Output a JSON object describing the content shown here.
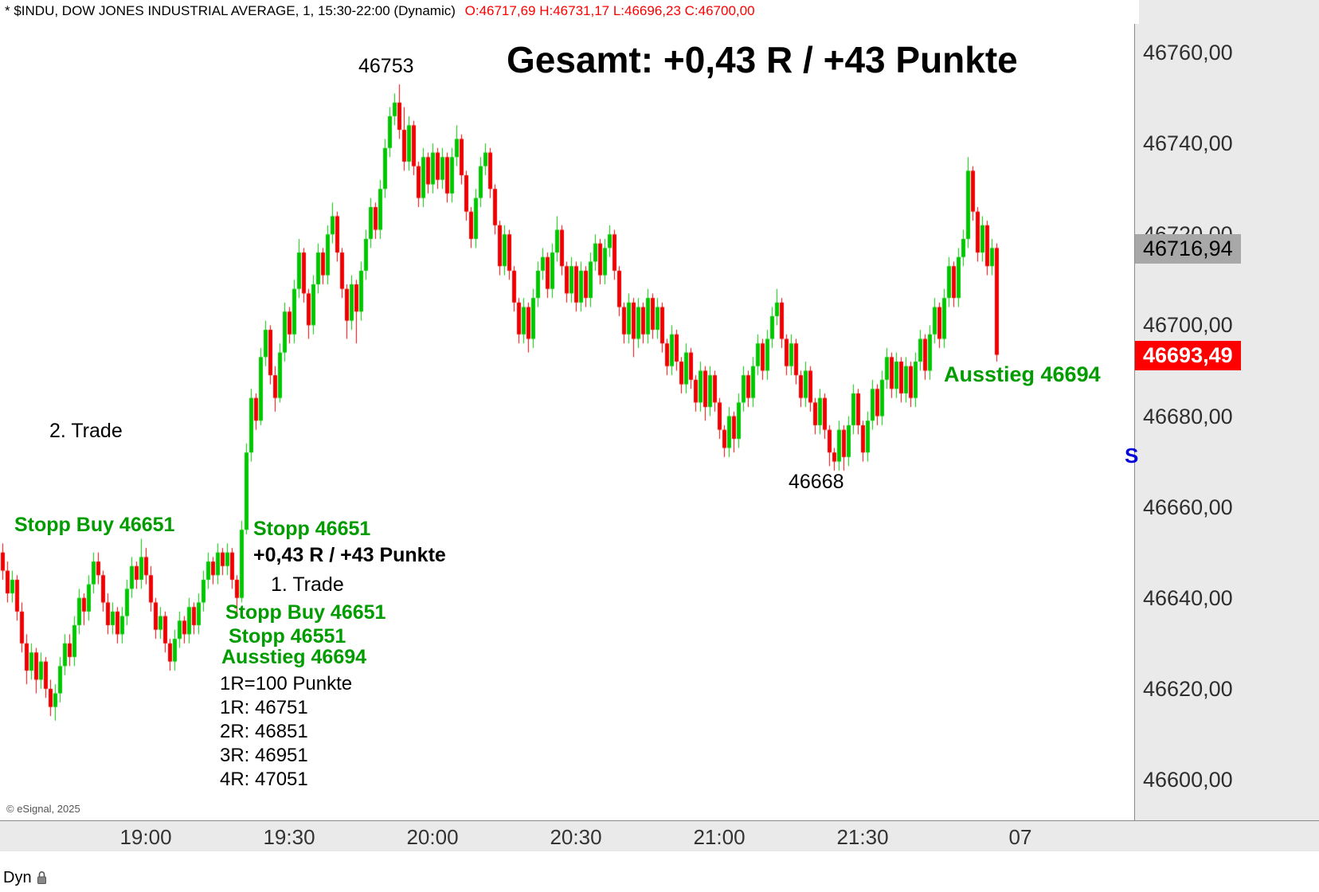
{
  "title_bar": {
    "symbol_text": "* $INDU, DOW JONES INDUSTRIAL AVERAGE, 1, 15:30-22:00 (Dynamic)",
    "ohlc_text": "O:46717,69 H:46731,17 L:46696,23 C:46700,00"
  },
  "annotations": {
    "headline": "Gesamt: +0,43 R / +43 Punkte",
    "peak_label": "46753",
    "trough_label": "46668",
    "trade2_label": "2. Trade",
    "stopp_buy_left": "Stopp Buy 46651",
    "stopp_46651": "Stopp 46651",
    "result_line": "+0,43 R / +43 Punkte",
    "trade1_label": "1. Trade",
    "stopp_buy_1": "Stopp Buy 46651",
    "stopp_46551": "Stopp 46551",
    "ausstieg_1": "Ausstieg 46694",
    "r_lines": [
      "1R=100 Punkte",
      "1R: 46751",
      "2R: 46851",
      "3R: 46951",
      "4R: 47051"
    ],
    "ausstieg_right": "Ausstieg 46694",
    "s_partial": "S"
  },
  "price_axis": {
    "labels": [
      {
        "text": "46760,00",
        "value": 46760
      },
      {
        "text": "46740,00",
        "value": 46740
      },
      {
        "text": "46720,00",
        "value": 46720
      },
      {
        "text": "46700,00",
        "value": 46700
      },
      {
        "text": "46680,00",
        "value": 46680
      },
      {
        "text": "46660,00",
        "value": 46660
      },
      {
        "text": "46640,00",
        "value": 46640
      },
      {
        "text": "46620,00",
        "value": 46620
      },
      {
        "text": "46600,00",
        "value": 46600
      }
    ],
    "markers": [
      {
        "text": "46716,94",
        "value": 46716.94,
        "style": "gray"
      },
      {
        "text": "46693,49",
        "value": 46693.49,
        "style": "red"
      }
    ]
  },
  "time_axis": {
    "labels": [
      {
        "text": "19:00",
        "minute": 30
      },
      {
        "text": "19:30",
        "minute": 60
      },
      {
        "text": "20:00",
        "minute": 90
      },
      {
        "text": "20:30",
        "minute": 120
      },
      {
        "text": "21:00",
        "minute": 150
      },
      {
        "text": "21:30",
        "minute": 180
      },
      {
        "text": "07",
        "minute": 213
      }
    ],
    "dyn_label": "Dyn"
  },
  "footer": {
    "copyright": "© eSignal, 2025"
  },
  "colors": {
    "up": "#00C800",
    "down": "#F00000",
    "annotation_green": "#009C00",
    "annotation_blue": "#0000D8",
    "marker_red_bg": "#FF0000",
    "marker_gray_bg": "#A8A8A8",
    "ohlc_red": "#FF0000",
    "axis_bg": "#EAEAEA"
  },
  "chart_data": {
    "type": "candlestick",
    "title": "Gesamt: +0,43 R / +43 Punkte",
    "symbol": "$INDU",
    "description": "DOW JONES INDUSTRIAL AVERAGE",
    "interval_minutes": 1,
    "session": "15:30-22:00 (Dynamic)",
    "ohlc_readout": {
      "open": "46717,69",
      "high": "46731,17",
      "low": "46696,23",
      "close": "46700,00"
    },
    "x_start_time": "18:30",
    "x_tick_labels": [
      "19:00",
      "19:30",
      "20:00",
      "20:30",
      "21:00",
      "21:30",
      "07"
    ],
    "ylim": [
      46600,
      46760
    ],
    "y_ticks": [
      46760,
      46740,
      46720,
      46700,
      46680,
      46660,
      46640,
      46620,
      46600
    ],
    "grid": false,
    "session_high": 46753,
    "session_low": 46668,
    "last_price": 46693.49,
    "reference_price": 46716.94,
    "candles": [
      [
        46650,
        46652,
        46644,
        46646
      ],
      [
        46646,
        46648,
        46639,
        46641
      ],
      [
        46641,
        46646,
        46639,
        46644
      ],
      [
        46644,
        46645,
        46635,
        46637
      ],
      [
        46637,
        46639,
        46628,
        46630
      ],
      [
        46630,
        46632,
        46621,
        46624
      ],
      [
        46624,
        46630,
        46622,
        46628
      ],
      [
        46628,
        46629,
        46619,
        46622
      ],
      [
        46622,
        46628,
        46620,
        46626
      ],
      [
        46626,
        46627,
        46618,
        46620
      ],
      [
        46620,
        46622,
        46614,
        46616
      ],
      [
        46616,
        46621,
        46613,
        46619
      ],
      [
        46619,
        46627,
        46617,
        46625
      ],
      [
        46625,
        46632,
        46623,
        46630
      ],
      [
        46630,
        46632,
        46625,
        46627
      ],
      [
        46627,
        46636,
        46625,
        46634
      ],
      [
        46634,
        46642,
        46632,
        46640
      ],
      [
        46640,
        46641,
        46634,
        46637
      ],
      [
        46637,
        46645,
        46635,
        46643
      ],
      [
        46643,
        46650,
        46641,
        46648
      ],
      [
        46648,
        46650,
        46643,
        46645
      ],
      [
        46645,
        46646,
        46637,
        46639
      ],
      [
        46639,
        46641,
        46632,
        46634
      ],
      [
        46634,
        46639,
        46632,
        46637
      ],
      [
        46637,
        46638,
        46630,
        46632
      ],
      [
        46632,
        46638,
        46630,
        46636
      ],
      [
        46636,
        46644,
        46634,
        46642
      ],
      [
        46642,
        46649,
        46640,
        46647
      ],
      [
        46647,
        46648,
        46642,
        46644
      ],
      [
        46644,
        46653,
        46642,
        46649
      ],
      [
        46649,
        46651,
        46643,
        46645
      ],
      [
        46645,
        46647,
        46637,
        46639
      ],
      [
        46639,
        46640,
        46631,
        46633
      ],
      [
        46633,
        46638,
        46631,
        46636
      ],
      [
        46636,
        46637,
        46628,
        46630
      ],
      [
        46630,
        46631,
        46624,
        46626
      ],
      [
        46626,
        46633,
        46624,
        46631
      ],
      [
        46631,
        46637,
        46629,
        46635
      ],
      [
        46635,
        46636,
        46630,
        46632
      ],
      [
        46632,
        46640,
        46630,
        46638
      ],
      [
        46638,
        46639,
        46632,
        46634
      ],
      [
        46634,
        46641,
        46632,
        46639
      ],
      [
        46639,
        46646,
        46637,
        46644
      ],
      [
        46644,
        46650,
        46642,
        46648
      ],
      [
        46648,
        46649,
        46643,
        46645
      ],
      [
        46645,
        46652,
        46643,
        46650
      ],
      [
        46650,
        46651,
        46645,
        46647
      ],
      [
        46647,
        46652,
        46645,
        46650
      ],
      [
        46650,
        46651,
        46642,
        46644
      ],
      [
        46644,
        46645,
        46636,
        46640
      ],
      [
        46640,
        46657,
        46639,
        46655
      ],
      [
        46655,
        46674,
        46654,
        46672
      ],
      [
        46672,
        46686,
        46670,
        46684
      ],
      [
        46684,
        46685,
        46677,
        46679
      ],
      [
        46679,
        46695,
        46678,
        46693
      ],
      [
        46693,
        46701,
        46691,
        46699
      ],
      [
        46699,
        46700,
        46687,
        46689
      ],
      [
        46689,
        46691,
        46681,
        46684
      ],
      [
        46684,
        46696,
        46683,
        46694
      ],
      [
        46694,
        46705,
        46692,
        46703
      ],
      [
        46703,
        46704,
        46696,
        46698
      ],
      [
        46698,
        46710,
        46696,
        46708
      ],
      [
        46708,
        46719,
        46706,
        46716
      ],
      [
        46716,
        46717,
        46705,
        46707
      ],
      [
        46707,
        46708,
        46697,
        46700
      ],
      [
        46700,
        46711,
        46698,
        46709
      ],
      [
        46709,
        46718,
        46707,
        46716
      ],
      [
        46716,
        46717,
        46709,
        46711
      ],
      [
        46711,
        46722,
        46709,
        46720
      ],
      [
        46720,
        46727,
        46718,
        46724
      ],
      [
        46724,
        46725,
        46714,
        46716
      ],
      [
        46716,
        46717,
        46706,
        46708
      ],
      [
        46708,
        46709,
        46697,
        46701
      ],
      [
        46701,
        46711,
        46699,
        46709
      ],
      [
        46709,
        46710,
        46696,
        46703
      ],
      [
        46703,
        46714,
        46701,
        46712
      ],
      [
        46712,
        46721,
        46710,
        46719
      ],
      [
        46719,
        46728,
        46717,
        46726
      ],
      [
        46726,
        46727,
        46719,
        46721
      ],
      [
        46721,
        46732,
        46719,
        46730
      ],
      [
        46730,
        46741,
        46728,
        46739
      ],
      [
        46739,
        46748,
        46737,
        46746
      ],
      [
        46746,
        46751,
        46744,
        46749
      ],
      [
        46749,
        46753,
        46741,
        46743
      ],
      [
        46743,
        46748,
        46734,
        46736
      ],
      [
        46736,
        46746,
        46734,
        46744
      ],
      [
        46744,
        46745,
        46733,
        46735
      ],
      [
        46735,
        46736,
        46726,
        46728
      ],
      [
        46728,
        46739,
        46726,
        46737
      ],
      [
        46737,
        46738,
        46729,
        46731
      ],
      [
        46731,
        46740,
        46729,
        46738
      ],
      [
        46738,
        46739,
        46730,
        46732
      ],
      [
        46732,
        46739,
        46730,
        46737
      ],
      [
        46737,
        46738,
        46727,
        46729
      ],
      [
        46729,
        46739,
        46727,
        46737
      ],
      [
        46737,
        46744,
        46735,
        46741
      ],
      [
        46741,
        46742,
        46731,
        46733
      ],
      [
        46733,
        46734,
        46723,
        46725
      ],
      [
        46725,
        46726,
        46717,
        46719
      ],
      [
        46719,
        46730,
        46717,
        46728
      ],
      [
        46728,
        46737,
        46726,
        46735
      ],
      [
        46735,
        46740,
        46733,
        46738
      ],
      [
        46738,
        46739,
        46728,
        46730
      ],
      [
        46730,
        46731,
        46720,
        46722
      ],
      [
        46722,
        46723,
        46711,
        46713
      ],
      [
        46713,
        46722,
        46711,
        46720
      ],
      [
        46720,
        46721,
        46710,
        46712
      ],
      [
        46712,
        46713,
        46703,
        46705
      ],
      [
        46705,
        46706,
        46696,
        46698
      ],
      [
        46698,
        46706,
        46696,
        46704
      ],
      [
        46704,
        46705,
        46694,
        46697
      ],
      [
        46697,
        46708,
        46695,
        46706
      ],
      [
        46706,
        46714,
        46704,
        46712
      ],
      [
        46712,
        46717,
        46710,
        46715
      ],
      [
        46715,
        46716,
        46706,
        46708
      ],
      [
        46708,
        46718,
        46706,
        46716
      ],
      [
        46716,
        46724,
        46714,
        46721
      ],
      [
        46721,
        46722,
        46711,
        46713
      ],
      [
        46713,
        46714,
        46705,
        46707
      ],
      [
        46707,
        46715,
        46705,
        46713
      ],
      [
        46713,
        46714,
        46703,
        46705
      ],
      [
        46705,
        46714,
        46703,
        46712
      ],
      [
        46712,
        46713,
        46704,
        46706
      ],
      [
        46706,
        46716,
        46704,
        46714
      ],
      [
        46714,
        46720,
        46712,
        46718
      ],
      [
        46718,
        46719,
        46709,
        46711
      ],
      [
        46711,
        46719,
        46709,
        46717
      ],
      [
        46717,
        46722,
        46715,
        46720
      ],
      [
        46720,
        46721,
        46710,
        46712
      ],
      [
        46712,
        46713,
        46702,
        46704
      ],
      [
        46704,
        46705,
        46696,
        46698
      ],
      [
        46698,
        46707,
        46696,
        46705
      ],
      [
        46705,
        46706,
        46693,
        46697
      ],
      [
        46697,
        46706,
        46695,
        46704
      ],
      [
        46704,
        46705,
        46696,
        46698
      ],
      [
        46698,
        46708,
        46696,
        46706
      ],
      [
        46706,
        46707,
        46697,
        46699
      ],
      [
        46699,
        46706,
        46697,
        46704
      ],
      [
        46704,
        46705,
        46694,
        46696
      ],
      [
        46696,
        46697,
        46689,
        46691
      ],
      [
        46691,
        46700,
        46689,
        46698
      ],
      [
        46698,
        46699,
        46690,
        46692
      ],
      [
        46692,
        46693,
        46685,
        46687
      ],
      [
        46687,
        46696,
        46685,
        46694
      ],
      [
        46694,
        46695,
        46686,
        46688
      ],
      [
        46688,
        46689,
        46681,
        46683
      ],
      [
        46683,
        46692,
        46681,
        46690
      ],
      [
        46690,
        46691,
        46679,
        46682
      ],
      [
        46682,
        46691,
        46680,
        46689
      ],
      [
        46689,
        46690,
        46681,
        46683
      ],
      [
        46683,
        46684,
        46675,
        46677
      ],
      [
        46677,
        46678,
        46671,
        46673
      ],
      [
        46673,
        46682,
        46671,
        46680
      ],
      [
        46680,
        46681,
        46672,
        46675
      ],
      [
        46675,
        46685,
        46673,
        46683
      ],
      [
        46683,
        46691,
        46681,
        46689
      ],
      [
        46689,
        46690,
        46682,
        46684
      ],
      [
        46684,
        46693,
        46682,
        46691
      ],
      [
        46691,
        46698,
        46689,
        46696
      ],
      [
        46696,
        46697,
        46688,
        46690
      ],
      [
        46690,
        46699,
        46688,
        46697
      ],
      [
        46697,
        46704,
        46695,
        46702
      ],
      [
        46702,
        46708,
        46700,
        46705
      ],
      [
        46705,
        46706,
        46695,
        46697
      ],
      [
        46697,
        46698,
        46689,
        46691
      ],
      [
        46691,
        46698,
        46689,
        46696
      ],
      [
        46696,
        46697,
        46687,
        46689
      ],
      [
        46689,
        46690,
        46682,
        46684
      ],
      [
        46684,
        46692,
        46682,
        46690
      ],
      [
        46690,
        46691,
        46681,
        46683
      ],
      [
        46683,
        46684,
        46676,
        46678
      ],
      [
        46678,
        46686,
        46676,
        46684
      ],
      [
        46684,
        46685,
        46675,
        46677
      ],
      [
        46677,
        46678,
        46669,
        46672
      ],
      [
        46672,
        46673,
        46668,
        46670
      ],
      [
        46670,
        46679,
        46668,
        46677
      ],
      [
        46677,
        46678,
        46668,
        46671
      ],
      [
        46671,
        46680,
        46669,
        46678
      ],
      [
        46678,
        46687,
        46676,
        46685
      ],
      [
        46685,
        46686,
        46676,
        46678
      ],
      [
        46678,
        46679,
        46670,
        46672
      ],
      [
        46672,
        46681,
        46670,
        46679
      ],
      [
        46679,
        46688,
        46677,
        46686
      ],
      [
        46686,
        46687,
        46678,
        46680
      ],
      [
        46680,
        46690,
        46678,
        46688
      ],
      [
        46688,
        46695,
        46686,
        46693
      ],
      [
        46693,
        46694,
        46684,
        46686
      ],
      [
        46686,
        46694,
        46684,
        46692
      ],
      [
        46692,
        46693,
        46683,
        46685
      ],
      [
        46685,
        46693,
        46683,
        46691
      ],
      [
        46691,
        46692,
        46682,
        46684
      ],
      [
        46684,
        46694,
        46682,
        46692
      ],
      [
        46692,
        46699,
        46690,
        46697
      ],
      [
        46697,
        46698,
        46688,
        46690
      ],
      [
        46690,
        46700,
        46688,
        46698
      ],
      [
        46698,
        46706,
        46696,
        46704
      ],
      [
        46704,
        46705,
        46695,
        46697
      ],
      [
        46697,
        46708,
        46695,
        46706
      ],
      [
        46706,
        46715,
        46704,
        46713
      ],
      [
        46713,
        46714,
        46704,
        46706
      ],
      [
        46706,
        46717,
        46704,
        46715
      ],
      [
        46715,
        46721,
        46713,
        46719
      ],
      [
        46719,
        46737,
        46717,
        46734
      ],
      [
        46734,
        46735,
        46723,
        46725
      ],
      [
        46725,
        46726,
        46714,
        46716
      ],
      [
        46716,
        46724,
        46714,
        46722
      ],
      [
        46722,
        46723,
        46711,
        46713
      ],
      [
        46713,
        46719,
        46711,
        46717
      ],
      [
        46717,
        46718,
        46692,
        46693.49
      ]
    ]
  }
}
